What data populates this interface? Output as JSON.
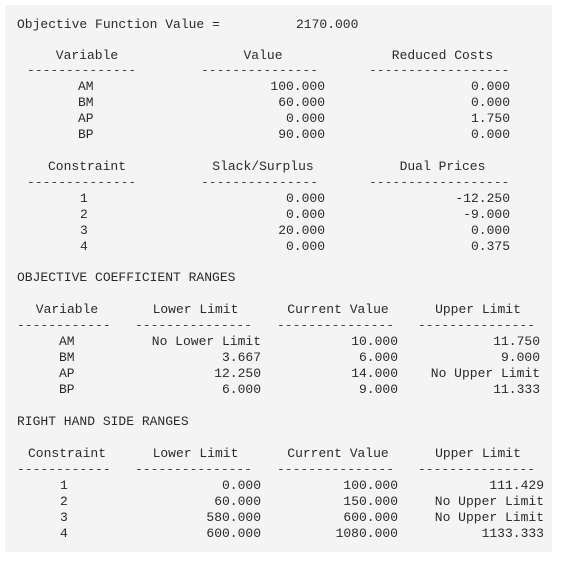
{
  "objective": {
    "label": "Objective Function Value =",
    "value": "2170.000"
  },
  "vars_table": {
    "headers": {
      "variable": "Variable",
      "value": "Value",
      "reduced": "Reduced Costs"
    },
    "dashes": {
      "variable": "--------------",
      "value": "---------------",
      "reduced": "------------------"
    },
    "rows": [
      {
        "variable": "AM",
        "value": "100.000",
        "reduced": "0.000"
      },
      {
        "variable": "BM",
        "value": "60.000",
        "reduced": "0.000"
      },
      {
        "variable": "AP",
        "value": "0.000",
        "reduced": "1.750"
      },
      {
        "variable": "BP",
        "value": "90.000",
        "reduced": "0.000"
      }
    ]
  },
  "cons_table": {
    "headers": {
      "constraint": "Constraint",
      "slack": "Slack/Surplus",
      "dual": "Dual Prices"
    },
    "dashes": {
      "constraint": "--------------",
      "slack": "---------------",
      "dual": "------------------"
    },
    "rows": [
      {
        "constraint": "1",
        "slack": "0.000",
        "dual": "-12.250"
      },
      {
        "constraint": "2",
        "slack": "0.000",
        "dual": "-9.000"
      },
      {
        "constraint": "3",
        "slack": "20.000",
        "dual": "0.000"
      },
      {
        "constraint": "4",
        "slack": "0.000",
        "dual": "0.375"
      }
    ]
  },
  "obj_ranges": {
    "title": "OBJECTIVE COEFFICIENT RANGES",
    "headers": {
      "variable": "Variable",
      "lower": "Lower Limit",
      "current": "Current Value",
      "upper": "Upper Limit"
    },
    "dashes": {
      "variable": "------------",
      "lower": "---------------",
      "current": "---------------",
      "upper": "---------------"
    },
    "rows": [
      {
        "variable": "AM",
        "lower": "No Lower Limit",
        "current": "10.000",
        "upper": "11.750"
      },
      {
        "variable": "BM",
        "lower": "3.667",
        "current": "6.000",
        "upper": "9.000"
      },
      {
        "variable": "AP",
        "lower": "12.250",
        "current": "14.000",
        "upper": "No Upper Limit"
      },
      {
        "variable": "BP",
        "lower": "6.000",
        "current": "9.000",
        "upper": "11.333"
      }
    ]
  },
  "rhs_ranges": {
    "title": "RIGHT HAND SIDE RANGES",
    "headers": {
      "constraint": "Constraint",
      "lower": "Lower Limit",
      "current": "Current Value",
      "upper": "Upper Limit"
    },
    "dashes": {
      "constraint": "------------",
      "lower": "---------------",
      "current": "---------------",
      "upper": "---------------"
    },
    "rows": [
      {
        "constraint": "1",
        "lower": "0.000",
        "current": "100.000",
        "upper": "111.429"
      },
      {
        "constraint": "2",
        "lower": "60.000",
        "current": "150.000",
        "upper": "No Upper Limit"
      },
      {
        "constraint": "3",
        "lower": "580.000",
        "current": "600.000",
        "upper": "No Upper Limit"
      },
      {
        "constraint": "4",
        "lower": "600.000",
        "current": "1080.000",
        "upper": "1133.333"
      }
    ]
  }
}
